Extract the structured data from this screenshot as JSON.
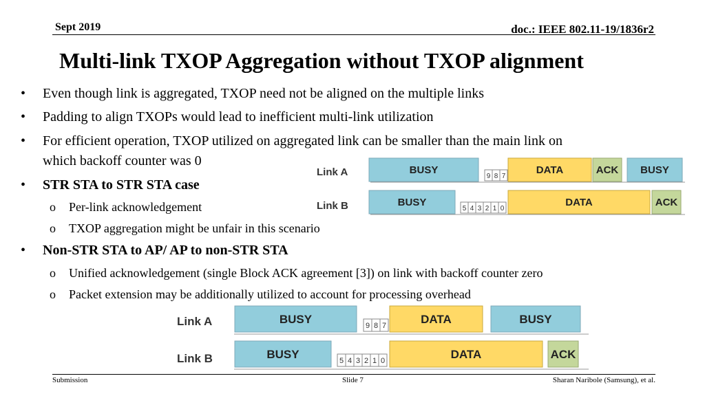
{
  "header": {
    "date": "Sept 2019",
    "doc": "doc.: IEEE 802.11-19/1836r2"
  },
  "title": "Multi-link TXOP Aggregation without TXOP alignment",
  "bullets": [
    "Even though link is aggregated, TXOP need not be aligned on the multiple links",
    "Padding to align TXOPs would lead to inefficient multi-link utilization",
    "For efficient operation, TXOP utilized on aggregated link can be smaller than the main link on",
    "which backoff counter was 0",
    "STR STA to STR STA case",
    "Per-link acknowledgement",
    "TXOP aggregation might be unfair in this scenario",
    "Non-STR STA to AP/ AP to non-STR STA",
    "Unified acknowledgement (single Block ACK agreement [3]) on link with backoff counter zero",
    "Packet extension may be additionally utilized to account for processing overhead"
  ],
  "diagram": {
    "link_a": "Link A",
    "link_b": "Link B",
    "busy": "BUSY",
    "data": "DATA",
    "ack": "ACK",
    "counter_a": [
      "9",
      "8",
      "7"
    ],
    "counter_b": [
      "5",
      "4",
      "3",
      "2",
      "1",
      "0"
    ]
  },
  "colors": {
    "busy": "#92cddc",
    "data": "#ffd966",
    "ack": "#c4d79b",
    "counter": "#ffffff"
  },
  "footer": {
    "left": "Submission",
    "center": "Slide 7",
    "right": "Sharan Naribole (Samsung), et al."
  }
}
